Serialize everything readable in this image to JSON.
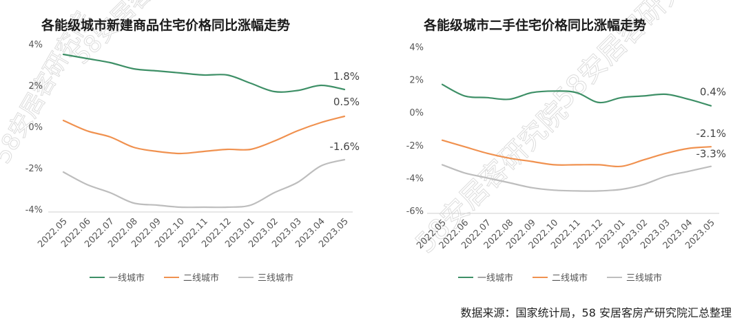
{
  "watermark": "58安居客研究院",
  "source": "数据来源：国家统计局，58 安居客房产研究院汇总整理",
  "colors": {
    "tier1": "#3d8f66",
    "tier2": "#f0914f",
    "tier3": "#bdbdbd"
  },
  "chart_data": [
    {
      "type": "line",
      "title": "各能级城市新建商品住宅价格同比涨幅走势",
      "xlabel": "",
      "ylabel": "",
      "categories": [
        "2022.05",
        "2022.06",
        "2022.07",
        "2022.08",
        "2022.09",
        "2022.10",
        "2022.11",
        "2022.12",
        "2023.01",
        "2023.02",
        "2023.03",
        "2023.04",
        "2023.05"
      ],
      "ylim": [
        -4,
        4
      ],
      "yticks": [
        "-4%",
        "-2%",
        "0%",
        "2%",
        "4%"
      ],
      "grid": false,
      "legend": "bottom",
      "series": [
        {
          "name": "一线城市",
          "values": [
            3.5,
            3.3,
            3.1,
            2.8,
            2.7,
            2.6,
            2.5,
            2.5,
            2.1,
            1.7,
            1.75,
            2.0,
            1.8
          ],
          "end_label": "1.8%"
        },
        {
          "name": "二线城市",
          "values": [
            0.3,
            -0.2,
            -0.5,
            -1.0,
            -1.2,
            -1.3,
            -1.2,
            -1.1,
            -1.1,
            -0.7,
            -0.2,
            0.2,
            0.5
          ],
          "end_label": "0.5%"
        },
        {
          "name": "三线城市",
          "values": [
            -2.2,
            -2.8,
            -3.2,
            -3.7,
            -3.8,
            -3.9,
            -3.9,
            -3.9,
            -3.8,
            -3.2,
            -2.7,
            -1.9,
            -1.6
          ],
          "end_label": "-1.6%"
        }
      ]
    },
    {
      "type": "line",
      "title": "各能级城市二手住宅价格同比涨幅走势",
      "xlabel": "",
      "ylabel": "",
      "categories": [
        "2022.05",
        "2022.06",
        "2022.07",
        "2022.08",
        "2022.09",
        "2022.10",
        "2022.11",
        "2022.12",
        "2023.01",
        "2023.02",
        "2023.03",
        "2023.04",
        "2023.05"
      ],
      "ylim": [
        -6,
        4
      ],
      "yticks": [
        "-6%",
        "-4%",
        "-2%",
        "0%",
        "2%",
        "4%"
      ],
      "grid": false,
      "legend": "bottom",
      "series": [
        {
          "name": "一线城市",
          "values": [
            1.7,
            1.0,
            0.9,
            0.8,
            1.2,
            1.3,
            1.2,
            0.6,
            0.9,
            1.0,
            1.1,
            0.8,
            0.4
          ],
          "end_label": "0.4%"
        },
        {
          "name": "二线城市",
          "values": [
            -1.7,
            -2.1,
            -2.5,
            -2.8,
            -3.0,
            -3.2,
            -3.2,
            -3.2,
            -3.3,
            -2.9,
            -2.5,
            -2.2,
            -2.1
          ],
          "end_label": "-2.1%"
        },
        {
          "name": "三线城市",
          "values": [
            -3.2,
            -3.7,
            -4.0,
            -4.3,
            -4.6,
            -4.75,
            -4.8,
            -4.8,
            -4.7,
            -4.4,
            -3.9,
            -3.6,
            -3.3
          ],
          "end_label": "-3.3%"
        }
      ]
    }
  ]
}
